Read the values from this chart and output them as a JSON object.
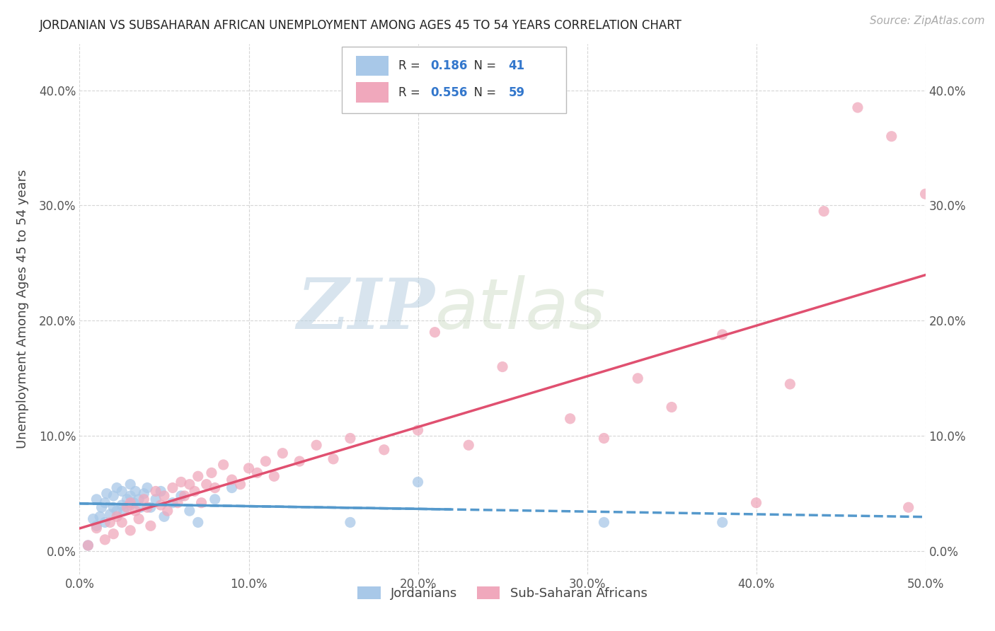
{
  "title": "JORDANIAN VS SUBSAHARAN AFRICAN UNEMPLOYMENT AMONG AGES 45 TO 54 YEARS CORRELATION CHART",
  "source": "Source: ZipAtlas.com",
  "ylabel": "Unemployment Among Ages 45 to 54 years",
  "xlim": [
    0.0,
    0.5
  ],
  "ylim": [
    -0.02,
    0.44
  ],
  "xticks": [
    0.0,
    0.1,
    0.2,
    0.3,
    0.4,
    0.5
  ],
  "xticklabels": [
    "0.0%",
    "10.0%",
    "20.0%",
    "30.0%",
    "40.0%",
    "50.0%"
  ],
  "yticks": [
    0.0,
    0.1,
    0.2,
    0.3,
    0.4
  ],
  "yticklabels": [
    "0.0%",
    "10.0%",
    "20.0%",
    "30.0%",
    "40.0%"
  ],
  "legend_r_jordan": "0.186",
  "legend_n_jordan": "41",
  "legend_r_subsaharan": "0.556",
  "legend_n_subsaharan": "59",
  "color_jordan": "#a8c8e8",
  "color_subsaharan": "#f0a8bc",
  "line_jordan": "#5599cc",
  "line_subsaharan": "#e05070",
  "background_color": "#ffffff",
  "watermark_zip": "ZIP",
  "watermark_atlas": "atlas",
  "jordan_x": [
    0.005,
    0.008,
    0.01,
    0.01,
    0.012,
    0.013,
    0.015,
    0.015,
    0.016,
    0.018,
    0.02,
    0.02,
    0.022,
    0.022,
    0.025,
    0.025,
    0.026,
    0.028,
    0.03,
    0.03,
    0.03,
    0.032,
    0.033,
    0.035,
    0.036,
    0.038,
    0.04,
    0.042,
    0.045,
    0.048,
    0.05,
    0.055,
    0.06,
    0.065,
    0.07,
    0.08,
    0.09,
    0.16,
    0.2,
    0.31,
    0.38
  ],
  "jordan_y": [
    0.005,
    0.028,
    0.022,
    0.045,
    0.03,
    0.038,
    0.025,
    0.042,
    0.05,
    0.032,
    0.038,
    0.048,
    0.035,
    0.055,
    0.04,
    0.052,
    0.035,
    0.045,
    0.04,
    0.048,
    0.058,
    0.042,
    0.052,
    0.045,
    0.038,
    0.05,
    0.055,
    0.038,
    0.045,
    0.052,
    0.03,
    0.042,
    0.048,
    0.035,
    0.025,
    0.045,
    0.055,
    0.025,
    0.06,
    0.025,
    0.025
  ],
  "subsaharan_x": [
    0.005,
    0.01,
    0.015,
    0.018,
    0.02,
    0.022,
    0.025,
    0.028,
    0.03,
    0.03,
    0.033,
    0.035,
    0.038,
    0.04,
    0.042,
    0.045,
    0.048,
    0.05,
    0.052,
    0.055,
    0.058,
    0.06,
    0.062,
    0.065,
    0.068,
    0.07,
    0.072,
    0.075,
    0.078,
    0.08,
    0.085,
    0.09,
    0.095,
    0.1,
    0.105,
    0.11,
    0.115,
    0.12,
    0.13,
    0.14,
    0.15,
    0.16,
    0.18,
    0.2,
    0.21,
    0.23,
    0.25,
    0.29,
    0.31,
    0.33,
    0.35,
    0.38,
    0.4,
    0.42,
    0.44,
    0.46,
    0.48,
    0.49,
    0.5
  ],
  "subsaharan_y": [
    0.005,
    0.02,
    0.01,
    0.025,
    0.015,
    0.03,
    0.025,
    0.038,
    0.018,
    0.042,
    0.035,
    0.028,
    0.045,
    0.038,
    0.022,
    0.052,
    0.04,
    0.048,
    0.035,
    0.055,
    0.042,
    0.06,
    0.048,
    0.058,
    0.052,
    0.065,
    0.042,
    0.058,
    0.068,
    0.055,
    0.075,
    0.062,
    0.058,
    0.072,
    0.068,
    0.078,
    0.065,
    0.085,
    0.078,
    0.092,
    0.08,
    0.098,
    0.088,
    0.105,
    0.19,
    0.092,
    0.16,
    0.115,
    0.098,
    0.15,
    0.125,
    0.188,
    0.042,
    0.145,
    0.295,
    0.385,
    0.36,
    0.038,
    0.31
  ]
}
